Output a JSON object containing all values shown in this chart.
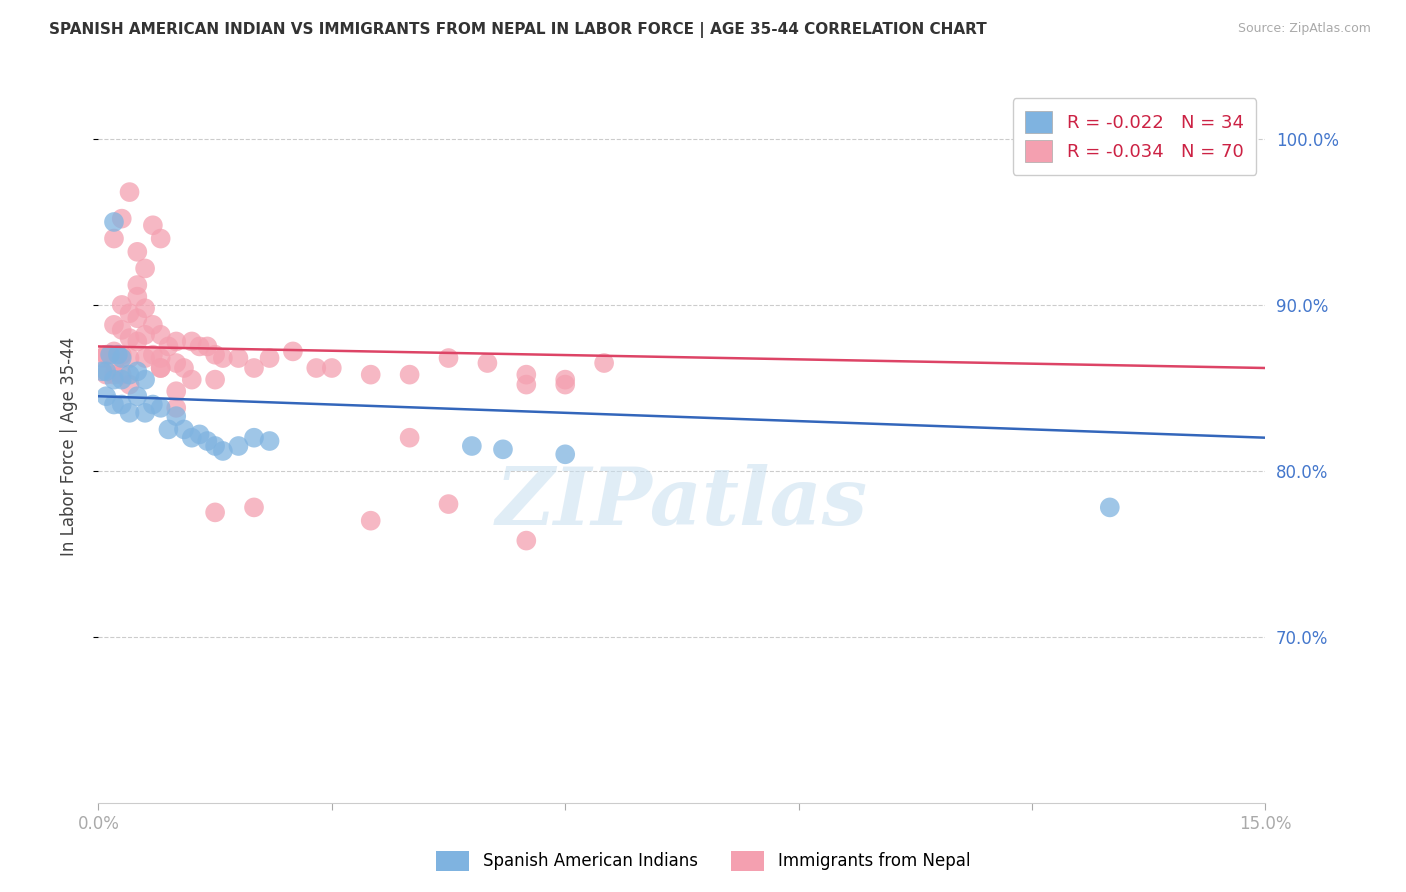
{
  "title": "SPANISH AMERICAN INDIAN VS IMMIGRANTS FROM NEPAL IN LABOR FORCE | AGE 35-44 CORRELATION CHART",
  "source": "Source: ZipAtlas.com",
  "ylabel": "In Labor Force | Age 35-44",
  "xlim": [
    0.0,
    0.15
  ],
  "ylim": [
    0.6,
    1.03
  ],
  "grid_yticks": [
    1.0,
    0.9,
    0.8,
    0.7
  ],
  "right_yticklabels": [
    "100.0%",
    "90.0%",
    "80.0%",
    "70.0%"
  ],
  "xtick_labels_show": [
    "0.0%",
    "15.0%"
  ],
  "xtick_positions_show": [
    0.0,
    0.15
  ],
  "grid_color": "#cccccc",
  "background_color": "#ffffff",
  "blue_color": "#7fb3e0",
  "pink_color": "#f4a0b0",
  "blue_line_color": "#3366bb",
  "pink_line_color": "#dd4466",
  "legend_r_blue": "-0.022",
  "legend_n_blue": "34",
  "legend_r_pink": "-0.034",
  "legend_n_pink": "70",
  "legend_label_blue": "Spanish American Indians",
  "legend_label_pink": "Immigrants from Nepal",
  "watermark": "ZIPatlas",
  "blue_x": [
    0.0005,
    0.001,
    0.001,
    0.0015,
    0.002,
    0.002,
    0.0025,
    0.003,
    0.003,
    0.003,
    0.004,
    0.004,
    0.005,
    0.005,
    0.006,
    0.006,
    0.007,
    0.008,
    0.009,
    0.01,
    0.011,
    0.012,
    0.013,
    0.014,
    0.015,
    0.016,
    0.018,
    0.02,
    0.022,
    0.048,
    0.052,
    0.06,
    0.002,
    0.13
  ],
  "blue_y": [
    0.86,
    0.86,
    0.845,
    0.87,
    0.855,
    0.84,
    0.87,
    0.868,
    0.855,
    0.84,
    0.858,
    0.835,
    0.86,
    0.845,
    0.855,
    0.835,
    0.84,
    0.838,
    0.825,
    0.833,
    0.825,
    0.82,
    0.822,
    0.818,
    0.815,
    0.812,
    0.815,
    0.82,
    0.818,
    0.815,
    0.813,
    0.81,
    0.95,
    0.778
  ],
  "pink_x": [
    0.0005,
    0.001,
    0.001,
    0.002,
    0.002,
    0.002,
    0.003,
    0.003,
    0.003,
    0.004,
    0.004,
    0.004,
    0.005,
    0.005,
    0.005,
    0.006,
    0.006,
    0.006,
    0.007,
    0.007,
    0.008,
    0.008,
    0.009,
    0.01,
    0.01,
    0.011,
    0.012,
    0.013,
    0.014,
    0.015,
    0.016,
    0.018,
    0.02,
    0.022,
    0.025,
    0.028,
    0.03,
    0.035,
    0.04,
    0.045,
    0.05,
    0.055,
    0.06,
    0.065,
    0.06,
    0.055,
    0.002,
    0.003,
    0.004,
    0.005,
    0.006,
    0.005,
    0.007,
    0.008,
    0.001,
    0.002,
    0.003,
    0.004,
    0.035,
    0.055,
    0.045,
    0.008,
    0.01,
    0.012,
    0.015,
    0.02,
    0.008,
    0.04,
    0.01,
    0.015
  ],
  "pink_y": [
    0.868,
    0.87,
    0.858,
    0.888,
    0.872,
    0.858,
    0.9,
    0.885,
    0.87,
    0.895,
    0.88,
    0.868,
    0.905,
    0.892,
    0.878,
    0.898,
    0.882,
    0.868,
    0.888,
    0.87,
    0.882,
    0.868,
    0.875,
    0.878,
    0.865,
    0.862,
    0.878,
    0.875,
    0.875,
    0.87,
    0.868,
    0.868,
    0.862,
    0.868,
    0.872,
    0.862,
    0.862,
    0.858,
    0.858,
    0.868,
    0.865,
    0.858,
    0.855,
    0.865,
    0.852,
    0.852,
    0.94,
    0.952,
    0.968,
    0.932,
    0.922,
    0.912,
    0.948,
    0.94,
    0.87,
    0.865,
    0.858,
    0.852,
    0.77,
    0.758,
    0.78,
    0.862,
    0.848,
    0.855,
    0.775,
    0.778,
    0.862,
    0.82,
    0.838,
    0.855
  ],
  "blue_trend_x": [
    0.0,
    0.15
  ],
  "blue_trend_y": [
    0.845,
    0.82
  ],
  "pink_trend_x": [
    0.0,
    0.15
  ],
  "pink_trend_y": [
    0.875,
    0.862
  ]
}
